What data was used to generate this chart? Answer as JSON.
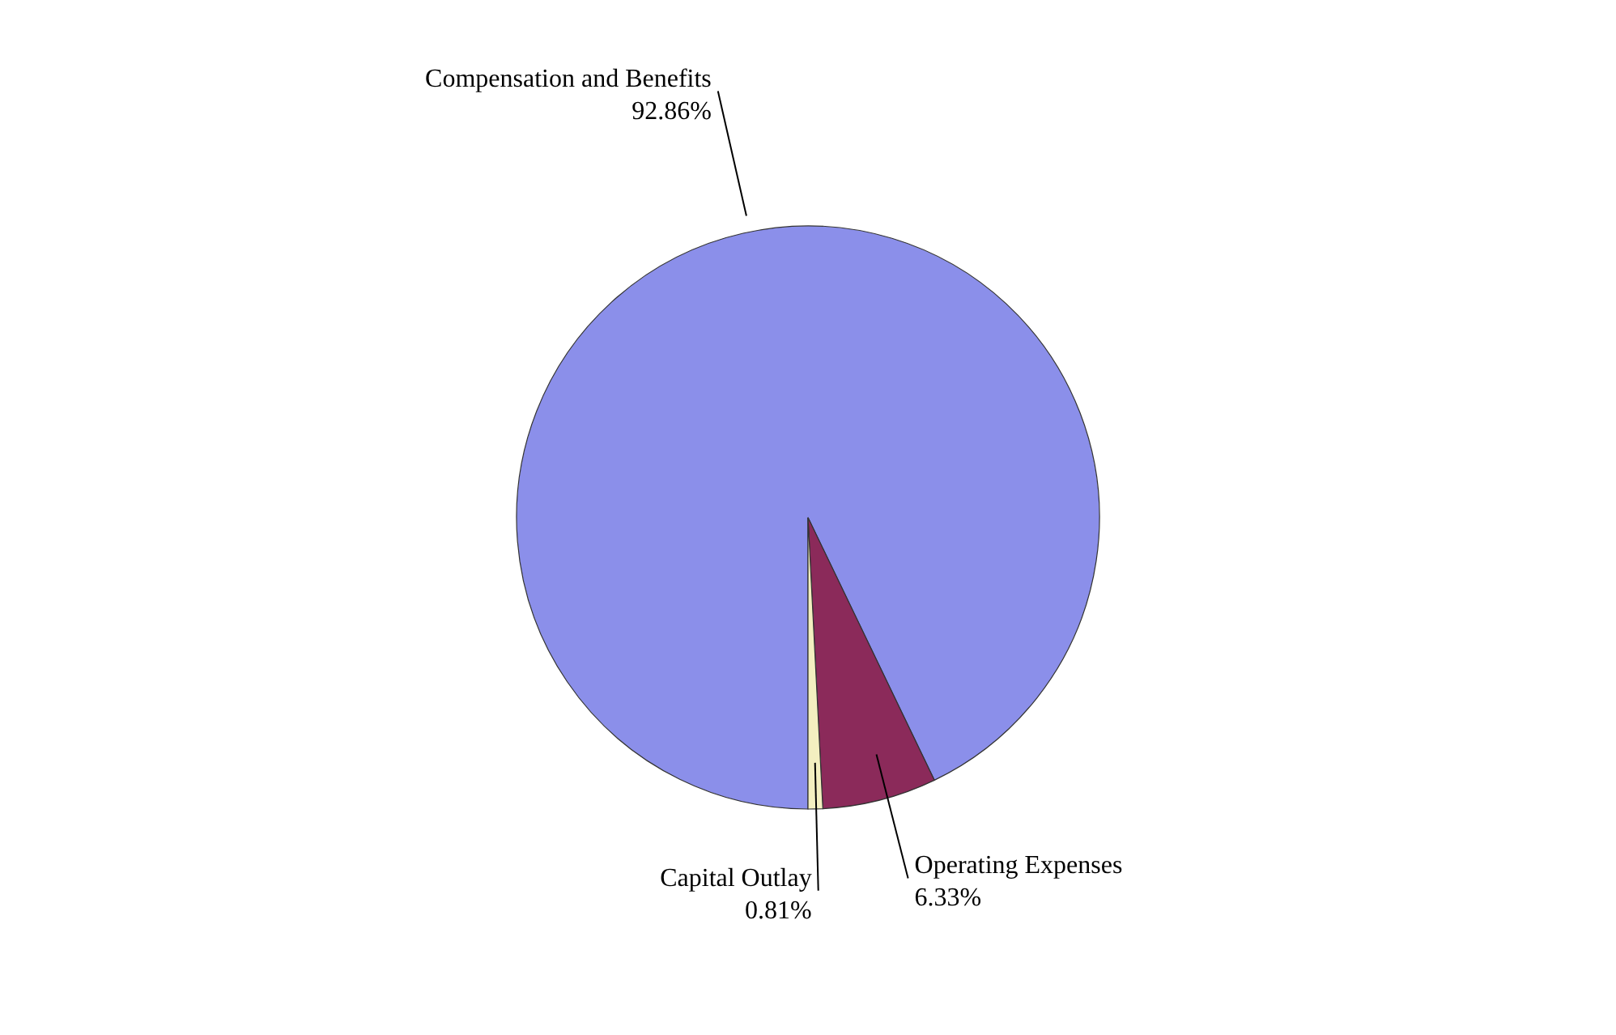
{
  "chart_data": {
    "type": "pie",
    "categories": [
      "Compensation and Benefits",
      "Operating Expenses",
      "Capital Outlay"
    ],
    "values": [
      92.86,
      6.33,
      0.81
    ],
    "colors": [
      "#8b8fea",
      "#8b2a5a",
      "#f3efc0"
    ],
    "value_labels": [
      "92.86%",
      "6.33%",
      "0.81%"
    ]
  }
}
